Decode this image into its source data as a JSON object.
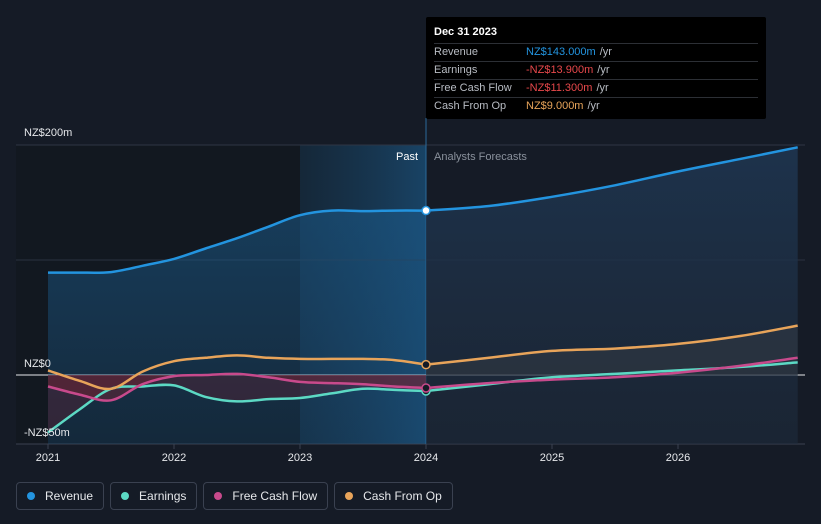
{
  "chart_data": {
    "type": "line",
    "y_label_top": "NZ$200m",
    "y_label_zero": "NZ$0",
    "y_label_bottom": "-NZ$50m",
    "ylim": [
      -60,
      200
    ],
    "xlim": [
      2020.8,
      2026.95
    ],
    "x_ticks": [
      {
        "value": 2021,
        "label": "2021"
      },
      {
        "value": 2022,
        "label": "2022"
      },
      {
        "value": 2023,
        "label": "2023"
      },
      {
        "value": 2024,
        "label": "2024"
      },
      {
        "value": 2025,
        "label": "2025"
      },
      {
        "value": 2026,
        "label": "2026"
      }
    ],
    "past_label": "Past",
    "forecast_label": "Analysts Forecasts",
    "divider_x": 2024,
    "highlight_start_x": 2023,
    "series": [
      {
        "name": "Revenue",
        "color": "#2394df",
        "points": [
          [
            2021,
            89
          ],
          [
            2021.25,
            89
          ],
          [
            2021.5,
            89.5
          ],
          [
            2021.75,
            95
          ],
          [
            2022,
            101
          ],
          [
            2022.25,
            110
          ],
          [
            2022.5,
            119
          ],
          [
            2022.75,
            129
          ],
          [
            2023,
            139
          ],
          [
            2023.25,
            143
          ],
          [
            2023.5,
            142.5
          ],
          [
            2023.75,
            143
          ],
          [
            2024,
            143
          ]
        ],
        "forecast": [
          [
            2024,
            143
          ],
          [
            2024.5,
            147
          ],
          [
            2025,
            155
          ],
          [
            2025.5,
            165
          ],
          [
            2026,
            177
          ],
          [
            2026.5,
            188
          ],
          [
            2026.95,
            198
          ]
        ]
      },
      {
        "name": "Earnings",
        "color": "#5cd9c4",
        "points": [
          [
            2021,
            -50
          ],
          [
            2021.25,
            -30
          ],
          [
            2021.5,
            -12
          ],
          [
            2021.75,
            -10
          ],
          [
            2022,
            -9
          ],
          [
            2022.25,
            -19
          ],
          [
            2022.5,
            -23
          ],
          [
            2022.75,
            -21
          ],
          [
            2023,
            -20
          ],
          [
            2023.25,
            -16
          ],
          [
            2023.5,
            -12
          ],
          [
            2023.75,
            -13
          ],
          [
            2024,
            -13.9
          ]
        ],
        "forecast": [
          [
            2024,
            -13.9
          ],
          [
            2024.5,
            -8
          ],
          [
            2025,
            -2
          ],
          [
            2025.5,
            1
          ],
          [
            2026,
            4
          ],
          [
            2026.5,
            7
          ],
          [
            2026.95,
            11
          ]
        ]
      },
      {
        "name": "Free Cash Flow",
        "color": "#c84a8c",
        "points": [
          [
            2021,
            -10
          ],
          [
            2021.25,
            -17
          ],
          [
            2021.5,
            -22
          ],
          [
            2021.75,
            -8
          ],
          [
            2022,
            -1
          ],
          [
            2022.25,
            0
          ],
          [
            2022.5,
            1
          ],
          [
            2022.75,
            -2
          ],
          [
            2023,
            -6
          ],
          [
            2023.25,
            -7
          ],
          [
            2023.5,
            -8
          ],
          [
            2023.75,
            -10
          ],
          [
            2024,
            -11.3
          ]
        ],
        "forecast": [
          [
            2024,
            -11.3
          ],
          [
            2024.5,
            -7
          ],
          [
            2025,
            -4
          ],
          [
            2025.5,
            -2
          ],
          [
            2026,
            2
          ],
          [
            2026.5,
            8
          ],
          [
            2026.95,
            15
          ]
        ]
      },
      {
        "name": "Cash From Op",
        "color": "#e8a45a",
        "points": [
          [
            2021,
            4
          ],
          [
            2021.25,
            -5
          ],
          [
            2021.5,
            -12
          ],
          [
            2021.75,
            3
          ],
          [
            2022,
            12
          ],
          [
            2022.25,
            15
          ],
          [
            2022.5,
            17
          ],
          [
            2022.75,
            15
          ],
          [
            2023,
            14
          ],
          [
            2023.25,
            14
          ],
          [
            2023.5,
            14
          ],
          [
            2023.75,
            13
          ],
          [
            2024,
            9
          ]
        ],
        "forecast": [
          [
            2024,
            9
          ],
          [
            2024.5,
            15
          ],
          [
            2025,
            21
          ],
          [
            2025.5,
            23
          ],
          [
            2026,
            27
          ],
          [
            2026.5,
            34
          ],
          [
            2026.95,
            43
          ]
        ]
      }
    ]
  },
  "tooltip": {
    "date": "Dec 31 2023",
    "unit": "/yr",
    "rows": [
      {
        "label": "Revenue",
        "value": "NZ$143.000m",
        "color": "#2394df"
      },
      {
        "label": "Earnings",
        "value": "-NZ$13.900m",
        "color": "#e8484b"
      },
      {
        "label": "Free Cash Flow",
        "value": "-NZ$11.300m",
        "color": "#e8484b"
      },
      {
        "label": "Cash From Op",
        "value": "NZ$9.000m",
        "color": "#e8a45a"
      }
    ]
  },
  "legend": [
    {
      "label": "Revenue",
      "color": "#2394df"
    },
    {
      "label": "Earnings",
      "color": "#5cd9c4"
    },
    {
      "label": "Free Cash Flow",
      "color": "#c84a8c"
    },
    {
      "label": "Cash From Op",
      "color": "#e8a45a"
    }
  ]
}
